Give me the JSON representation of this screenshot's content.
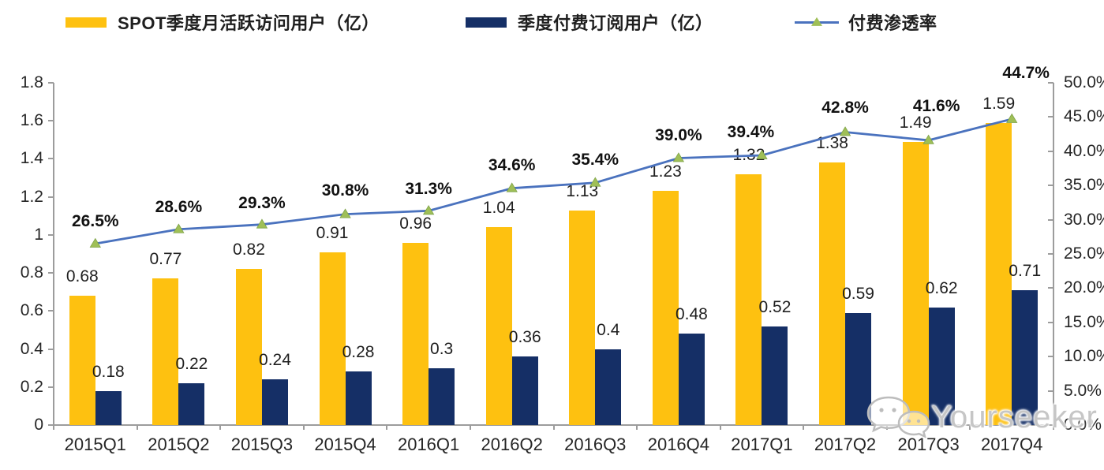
{
  "legend": [
    {
      "label": "SPOT季度月活跃访问用户（亿）",
      "swatch": "bar",
      "color": "#FEC110"
    },
    {
      "label": "季度付费订阅用户（亿）",
      "swatch": "bar",
      "color": "#152F66"
    },
    {
      "label": "付费渗透率",
      "swatch": "line",
      "color": "#4A72BE",
      "marker_color": "#9FBF57"
    }
  ],
  "watermark": {
    "text": "Yourseeker",
    "icon": "wechat-bubbles-icon"
  },
  "chart_data": {
    "type": "bar",
    "subtype": "combo-bar-line-dual-axis",
    "categories": [
      "2015Q1",
      "2015Q2",
      "2015Q3",
      "2015Q4",
      "2016Q1",
      "2016Q2",
      "2016Q3",
      "2016Q4",
      "2017Q1",
      "2017Q2",
      "2017Q3",
      "2017Q4"
    ],
    "series": [
      {
        "name": "SPOT季度月活跃访问用户（亿）",
        "type": "bar",
        "axis": "left",
        "color": "#FEC110",
        "values": [
          0.68,
          0.77,
          0.82,
          0.91,
          0.96,
          1.04,
          1.13,
          1.23,
          1.32,
          1.38,
          1.49,
          1.59
        ],
        "labels": [
          "0.68",
          "0.77",
          "0.82",
          "0.91",
          "0.96",
          "1.04",
          "1.13",
          "1.23",
          "1.32",
          "1.38",
          "1.49",
          "1.59"
        ]
      },
      {
        "name": "季度付费订阅用户（亿）",
        "type": "bar",
        "axis": "left",
        "color": "#152F66",
        "values": [
          0.18,
          0.22,
          0.24,
          0.28,
          0.3,
          0.36,
          0.4,
          0.48,
          0.52,
          0.59,
          0.62,
          0.71
        ],
        "labels": [
          "0.18",
          "0.22",
          "0.24",
          "0.28",
          "0.3",
          "0.36",
          "0.4",
          "0.48",
          "0.52",
          "0.59",
          "0.62",
          "0.71"
        ]
      },
      {
        "name": "付费渗透率",
        "type": "line",
        "axis": "right",
        "color": "#4A72BE",
        "marker": "triangle-up",
        "marker_color": "#9FBF57",
        "values": [
          26.5,
          28.6,
          29.3,
          30.8,
          31.3,
          34.6,
          35.4,
          39.0,
          39.4,
          42.8,
          41.6,
          44.7
        ],
        "labels": [
          "26.5%",
          "28.6%",
          "29.3%",
          "30.8%",
          "31.3%",
          "34.6%",
          "35.4%",
          "39.0%",
          "39.4%",
          "42.8%",
          "41.6%",
          "44.7%"
        ],
        "label_dy": [
          28,
          28,
          27,
          30,
          27,
          29,
          29,
          28,
          29,
          30,
          43,
          58
        ],
        "label_dx": [
          0,
          0,
          0,
          0,
          0,
          0,
          0,
          0,
          -14,
          0,
          10,
          18
        ]
      }
    ],
    "left_axis": {
      "min": 0,
      "max": 1.8,
      "step": 0.2,
      "tick_labels": [
        "0",
        "0.2",
        "0.4",
        "0.6",
        "0.8",
        "1",
        "1.2",
        "1.4",
        "1.6",
        "1.8"
      ]
    },
    "right_axis": {
      "min": 0,
      "max": 50,
      "step": 5,
      "tick_labels": [
        "0.0%",
        "5.0%",
        "10.0%",
        "15.0%",
        "20.0%",
        "25.0%",
        "30.0%",
        "35.0%",
        "40.0%",
        "45.0%",
        "50.0%"
      ]
    },
    "grid": false,
    "legend_position": "top",
    "background": "#ffffff"
  }
}
